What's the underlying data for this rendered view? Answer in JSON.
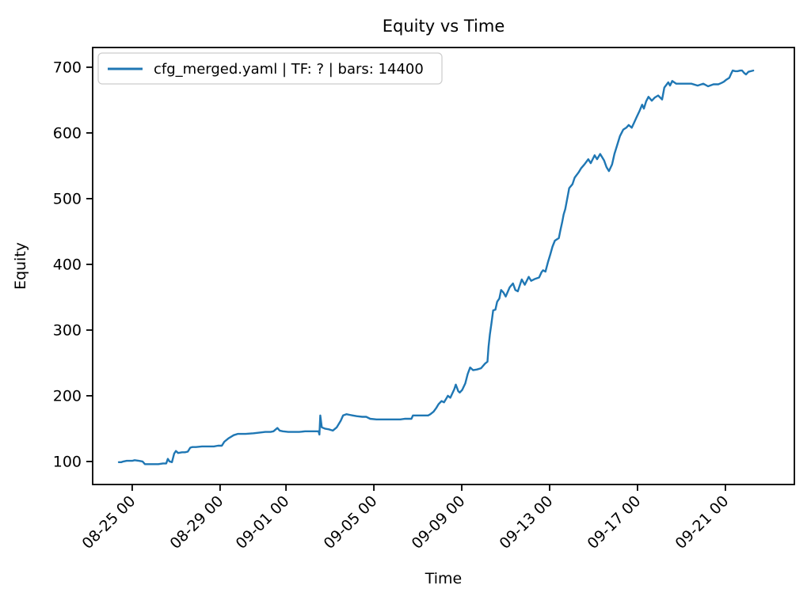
{
  "figure": {
    "title": "Equity vs Time",
    "xlabel": "Time",
    "ylabel": "Equity",
    "background_color": "#ffffff",
    "spine_color": "#000000",
    "tick_color": "#000000"
  },
  "legend": {
    "label": "cfg_merged.yaml | TF: ? | bars: 14400",
    "line_color": "#1f77b4",
    "border_color": "#cccccc",
    "background_color": "#ffffff",
    "position": "upper left"
  },
  "chart_data": {
    "type": "line",
    "title": "Equity vs Time",
    "xlabel": "Time",
    "ylabel": "Equity",
    "grid": false,
    "legend_position": "upper left",
    "x_unit": "days since 08-25 00:00",
    "xlim": [
      -1.8,
      30.14
    ],
    "ylim": [
      65,
      730
    ],
    "x_ticks": [
      {
        "d": 0,
        "label": "08-25 00"
      },
      {
        "d": 4,
        "label": "08-29 00"
      },
      {
        "d": 7,
        "label": "09-01 00"
      },
      {
        "d": 11,
        "label": "09-05 00"
      },
      {
        "d": 15,
        "label": "09-09 00"
      },
      {
        "d": 19,
        "label": "09-13 00"
      },
      {
        "d": 23,
        "label": "09-17 00"
      },
      {
        "d": 27,
        "label": "09-21 00"
      }
    ],
    "y_ticks": [
      100,
      200,
      300,
      400,
      500,
      600,
      700
    ],
    "series": [
      {
        "name": "cfg_merged.yaml | TF: ? | bars: 14400",
        "color": "#1f77b4",
        "line_width": 2.4,
        "points": [
          [
            -0.61,
            99
          ],
          [
            -0.5,
            99
          ],
          [
            -0.4,
            100
          ],
          [
            -0.25,
            101
          ],
          [
            0.0,
            101
          ],
          [
            0.11,
            102
          ],
          [
            0.3,
            101
          ],
          [
            0.47,
            100
          ],
          [
            0.58,
            96
          ],
          [
            0.8,
            96
          ],
          [
            1.0,
            96
          ],
          [
            1.19,
            96
          ],
          [
            1.4,
            97
          ],
          [
            1.55,
            97
          ],
          [
            1.62,
            104
          ],
          [
            1.7,
            100
          ],
          [
            1.81,
            99
          ],
          [
            1.91,
            112
          ],
          [
            1.99,
            116
          ],
          [
            2.09,
            113
          ],
          [
            2.27,
            114
          ],
          [
            2.4,
            114
          ],
          [
            2.53,
            115
          ],
          [
            2.64,
            121
          ],
          [
            2.74,
            122
          ],
          [
            2.9,
            122
          ],
          [
            3.18,
            123
          ],
          [
            3.4,
            123
          ],
          [
            3.72,
            123
          ],
          [
            3.9,
            124
          ],
          [
            4.08,
            124
          ],
          [
            4.19,
            130
          ],
          [
            4.37,
            135
          ],
          [
            4.62,
            140
          ],
          [
            4.8,
            142
          ],
          [
            5.0,
            142
          ],
          [
            5.16,
            142
          ],
          [
            5.52,
            143
          ],
          [
            5.8,
            144
          ],
          [
            6.06,
            145
          ],
          [
            6.3,
            145
          ],
          [
            6.43,
            146
          ],
          [
            6.61,
            151
          ],
          [
            6.71,
            147
          ],
          [
            6.86,
            146
          ],
          [
            7.1,
            145
          ],
          [
            7.33,
            145
          ],
          [
            7.6,
            145
          ],
          [
            7.87,
            146
          ],
          [
            8.1,
            146
          ],
          [
            8.23,
            146
          ],
          [
            8.48,
            146
          ],
          [
            8.52,
            141
          ],
          [
            8.56,
            170
          ],
          [
            8.63,
            152
          ],
          [
            8.77,
            150
          ],
          [
            8.95,
            149
          ],
          [
            9.13,
            147
          ],
          [
            9.31,
            152
          ],
          [
            9.49,
            162
          ],
          [
            9.6,
            170
          ],
          [
            9.75,
            172
          ],
          [
            9.89,
            171
          ],
          [
            10.04,
            170
          ],
          [
            10.22,
            169
          ],
          [
            10.47,
            168
          ],
          [
            10.65,
            168
          ],
          [
            10.83,
            165
          ],
          [
            11.12,
            164
          ],
          [
            11.4,
            164
          ],
          [
            11.66,
            164
          ],
          [
            11.95,
            164
          ],
          [
            12.2,
            164
          ],
          [
            12.4,
            165
          ],
          [
            12.56,
            165
          ],
          [
            12.71,
            165
          ],
          [
            12.78,
            170
          ],
          [
            13.0,
            170
          ],
          [
            13.1,
            170
          ],
          [
            13.3,
            170
          ],
          [
            13.47,
            170
          ],
          [
            13.57,
            172
          ],
          [
            13.72,
            176
          ],
          [
            13.83,
            181
          ],
          [
            13.94,
            187
          ],
          [
            14.08,
            192
          ],
          [
            14.19,
            190
          ],
          [
            14.3,
            196
          ],
          [
            14.37,
            200
          ],
          [
            14.48,
            197
          ],
          [
            14.66,
            210
          ],
          [
            14.73,
            217
          ],
          [
            14.84,
            207
          ],
          [
            14.91,
            205
          ],
          [
            15.02,
            209
          ],
          [
            15.16,
            219
          ],
          [
            15.27,
            233
          ],
          [
            15.38,
            243
          ],
          [
            15.52,
            239
          ],
          [
            15.7,
            240
          ],
          [
            15.88,
            242
          ],
          [
            16.06,
            249
          ],
          [
            16.17,
            252
          ],
          [
            16.22,
            275
          ],
          [
            16.28,
            293
          ],
          [
            16.35,
            310
          ],
          [
            16.43,
            330
          ],
          [
            16.53,
            331
          ],
          [
            16.61,
            343
          ],
          [
            16.71,
            348
          ],
          [
            16.79,
            361
          ],
          [
            16.9,
            357
          ],
          [
            17.0,
            351
          ],
          [
            17.18,
            365
          ],
          [
            17.33,
            371
          ],
          [
            17.44,
            361
          ],
          [
            17.55,
            359
          ],
          [
            17.73,
            377
          ],
          [
            17.87,
            369
          ],
          [
            18.05,
            381
          ],
          [
            18.16,
            375
          ],
          [
            18.34,
            378
          ],
          [
            18.52,
            380
          ],
          [
            18.63,
            388
          ],
          [
            18.7,
            391
          ],
          [
            18.81,
            389
          ],
          [
            18.92,
            403
          ],
          [
            19.03,
            415
          ],
          [
            19.13,
            427
          ],
          [
            19.24,
            436
          ],
          [
            19.42,
            440
          ],
          [
            19.49,
            452
          ],
          [
            19.57,
            464
          ],
          [
            19.64,
            476
          ],
          [
            19.71,
            484
          ],
          [
            19.78,
            496
          ],
          [
            19.89,
            516
          ],
          [
            20.04,
            522
          ],
          [
            20.14,
            532
          ],
          [
            20.32,
            540
          ],
          [
            20.43,
            546
          ],
          [
            20.58,
            552
          ],
          [
            20.76,
            560
          ],
          [
            20.87,
            554
          ],
          [
            21.05,
            566
          ],
          [
            21.16,
            560
          ],
          [
            21.3,
            568
          ],
          [
            21.48,
            558
          ],
          [
            21.59,
            548
          ],
          [
            21.7,
            542
          ],
          [
            21.84,
            552
          ],
          [
            21.95,
            568
          ],
          [
            22.06,
            580
          ],
          [
            22.2,
            595
          ],
          [
            22.35,
            605
          ],
          [
            22.49,
            608
          ],
          [
            22.6,
            612
          ],
          [
            22.74,
            608
          ],
          [
            22.85,
            616
          ],
          [
            22.96,
            624
          ],
          [
            23.1,
            634
          ],
          [
            23.21,
            643
          ],
          [
            23.29,
            637
          ],
          [
            23.39,
            648
          ],
          [
            23.5,
            655
          ],
          [
            23.65,
            649
          ],
          [
            23.79,
            654
          ],
          [
            23.94,
            657
          ],
          [
            24.12,
            651
          ],
          [
            24.22,
            669
          ],
          [
            24.4,
            677
          ],
          [
            24.48,
            672
          ],
          [
            24.58,
            679
          ],
          [
            24.76,
            675
          ],
          [
            24.94,
            675
          ],
          [
            25.2,
            675
          ],
          [
            25.45,
            675
          ],
          [
            25.74,
            672
          ],
          [
            25.99,
            675
          ],
          [
            26.21,
            671
          ],
          [
            26.46,
            674
          ],
          [
            26.68,
            674
          ],
          [
            26.82,
            676
          ],
          [
            26.93,
            678
          ],
          [
            27.04,
            681
          ],
          [
            27.18,
            684
          ],
          [
            27.26,
            690
          ],
          [
            27.33,
            695
          ],
          [
            27.45,
            694
          ],
          [
            27.55,
            694
          ],
          [
            27.68,
            695
          ],
          [
            27.76,
            695
          ],
          [
            27.86,
            691
          ],
          [
            27.94,
            689
          ],
          [
            28.05,
            693
          ],
          [
            28.16,
            694
          ],
          [
            28.27,
            695
          ]
        ]
      }
    ]
  }
}
